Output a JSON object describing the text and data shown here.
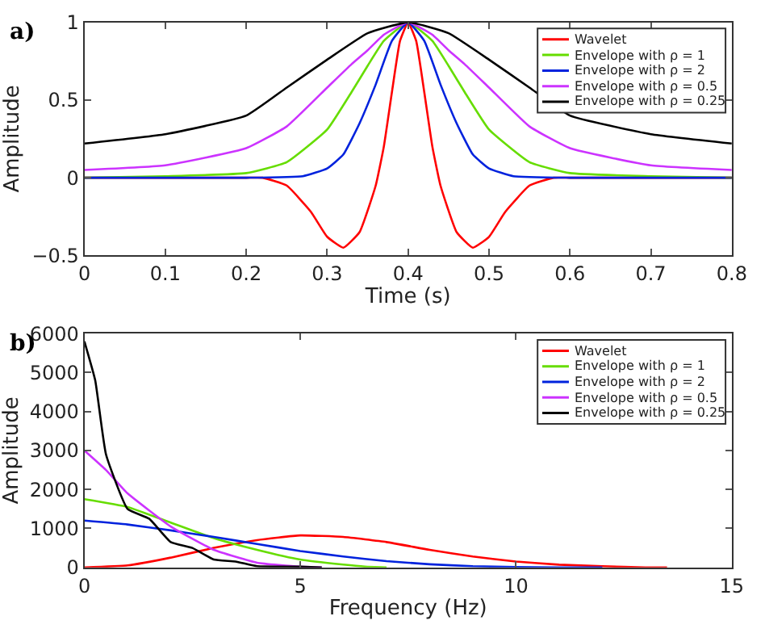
{
  "chart_data": [
    {
      "type": "line",
      "title": "a)",
      "xlabel": "Time (s)",
      "ylabel": "Amplitude",
      "xlim": [
        0,
        0.8
      ],
      "ylim": [
        -0.5,
        1
      ],
      "xticks": [
        0,
        0.1,
        0.2,
        0.3,
        0.4,
        0.5,
        0.6,
        0.7,
        0.8
      ],
      "yticks": [
        -0.5,
        0,
        0.5,
        1
      ],
      "legend": "top right",
      "series": [
        {
          "name": "Wavelet",
          "color": "#ff0000",
          "x": [
            0,
            0.2,
            0.22,
            0.25,
            0.28,
            0.3,
            0.32,
            0.34,
            0.36,
            0.37,
            0.38,
            0.39,
            0.4,
            0.41,
            0.42,
            0.43,
            0.44,
            0.46,
            0.48,
            0.5,
            0.52,
            0.55,
            0.58,
            0.6,
            0.8
          ],
          "values": [
            0,
            0,
            0,
            -0.05,
            -0.22,
            -0.38,
            -0.45,
            -0.35,
            -0.05,
            0.2,
            0.55,
            0.88,
            1,
            0.88,
            0.55,
            0.2,
            -0.05,
            -0.35,
            -0.45,
            -0.38,
            -0.22,
            -0.05,
            0,
            0,
            0
          ]
        },
        {
          "name": "Envelope with ρ = 1",
          "color": "#66dd00",
          "x": [
            0,
            0.1,
            0.2,
            0.25,
            0.3,
            0.33,
            0.35,
            0.37,
            0.4,
            0.43,
            0.45,
            0.47,
            0.5,
            0.55,
            0.6,
            0.7,
            0.8
          ],
          "values": [
            0,
            0.01,
            0.03,
            0.1,
            0.31,
            0.55,
            0.72,
            0.88,
            1,
            0.88,
            0.72,
            0.55,
            0.31,
            0.1,
            0.03,
            0.01,
            0
          ]
        },
        {
          "name": "Envelope with ρ = 2",
          "color": "#0022dd",
          "x": [
            0,
            0.2,
            0.27,
            0.3,
            0.32,
            0.34,
            0.36,
            0.38,
            0.4,
            0.42,
            0.44,
            0.46,
            0.48,
            0.5,
            0.53,
            0.6,
            0.8
          ],
          "values": [
            0,
            0,
            0.01,
            0.06,
            0.15,
            0.35,
            0.6,
            0.88,
            1,
            0.88,
            0.6,
            0.35,
            0.15,
            0.06,
            0.01,
            0,
            0
          ]
        },
        {
          "name": "Envelope with ρ = 0.5",
          "color": "#cc33ff",
          "x": [
            0,
            0.1,
            0.2,
            0.25,
            0.3,
            0.33,
            0.35,
            0.37,
            0.4,
            0.43,
            0.45,
            0.47,
            0.5,
            0.55,
            0.6,
            0.7,
            0.8
          ],
          "values": [
            0.05,
            0.08,
            0.19,
            0.33,
            0.58,
            0.73,
            0.82,
            0.92,
            1,
            0.92,
            0.82,
            0.73,
            0.58,
            0.33,
            0.19,
            0.08,
            0.05
          ]
        },
        {
          "name": "Envelope with ρ = 0.25",
          "color": "#000000",
          "x": [
            0,
            0.1,
            0.2,
            0.25,
            0.3,
            0.35,
            0.4,
            0.45,
            0.5,
            0.55,
            0.6,
            0.7,
            0.8
          ],
          "values": [
            0.22,
            0.28,
            0.4,
            0.58,
            0.76,
            0.93,
            1,
            0.93,
            0.76,
            0.58,
            0.4,
            0.28,
            0.22
          ]
        }
      ]
    },
    {
      "type": "line",
      "title": "b)",
      "xlabel": "Frequency (Hz)",
      "ylabel": "Amplitude",
      "xlim": [
        0,
        15
      ],
      "ylim": [
        0,
        6000
      ],
      "xticks": [
        0,
        5,
        10,
        15
      ],
      "yticks": [
        0,
        1000,
        2000,
        3000,
        4000,
        5000,
        6000
      ],
      "legend": "top right",
      "series": [
        {
          "name": "Wavelet",
          "color": "#ff0000",
          "x": [
            0,
            1,
            2,
            3,
            4,
            5,
            6,
            7,
            8,
            9,
            10,
            11,
            12,
            13,
            13.5
          ],
          "values": [
            0,
            50,
            250,
            500,
            700,
            820,
            780,
            650,
            450,
            280,
            150,
            70,
            30,
            0,
            0
          ]
        },
        {
          "name": "Envelope with ρ = 1",
          "color": "#66dd00",
          "x": [
            0,
            1,
            2,
            3,
            4,
            5,
            6,
            6.5,
            7
          ],
          "values": [
            1750,
            1550,
            1150,
            750,
            450,
            200,
            70,
            20,
            0
          ]
        },
        {
          "name": "Envelope with ρ = 2",
          "color": "#0022dd",
          "x": [
            0,
            1,
            2,
            3,
            4,
            5,
            6,
            7,
            8,
            9,
            10,
            11,
            12
          ],
          "values": [
            1200,
            1100,
            950,
            780,
            600,
            420,
            280,
            160,
            80,
            30,
            10,
            0,
            0
          ]
        },
        {
          "name": "Envelope with ρ = 0.5",
          "color": "#cc33ff",
          "x": [
            0,
            0.5,
            1,
            2,
            3,
            4,
            5,
            5.5
          ],
          "values": [
            3000,
            2500,
            1900,
            1050,
            450,
            120,
            20,
            0
          ]
        },
        {
          "name": "Envelope with ρ = 0.25",
          "color": "#000000",
          "x": [
            0,
            0.25,
            0.5,
            1,
            1.5,
            2,
            2.5,
            3,
            3.5,
            4,
            5,
            5.5
          ],
          "values": [
            5800,
            4800,
            2900,
            1500,
            1250,
            650,
            500,
            200,
            150,
            30,
            20,
            0
          ]
        }
      ]
    }
  ]
}
